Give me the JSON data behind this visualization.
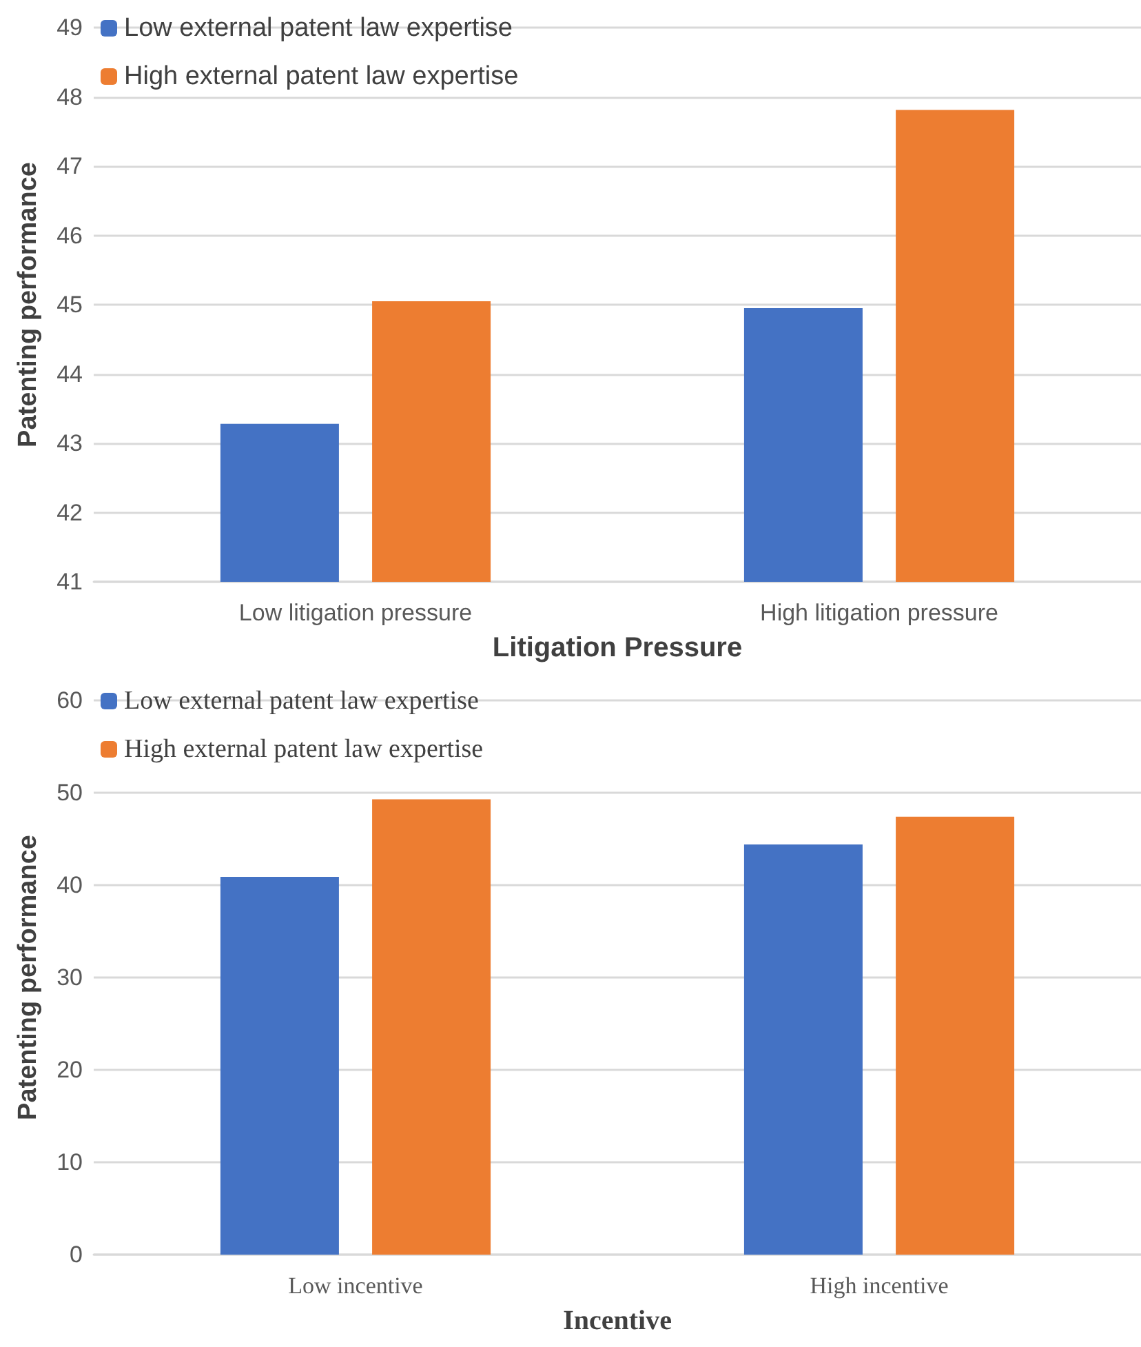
{
  "chart_data": [
    {
      "type": "bar",
      "xlabel": "Litigation Pressure",
      "ylabel": "Patenting performance",
      "categories": [
        "Low litigation pressure",
        "High litigation pressure"
      ],
      "series": [
        {
          "name": "Low external patent law expertise",
          "color": "#4472c4",
          "values": [
            43.28,
            44.95
          ]
        },
        {
          "name": "High external patent law expertise",
          "color": "#ed7d31",
          "values": [
            45.05,
            47.81
          ]
        }
      ],
      "ylim": [
        41,
        49
      ],
      "yticks": [
        41,
        42,
        43,
        44,
        45,
        46,
        47,
        48,
        49
      ],
      "grid": "y",
      "legend": "top left"
    },
    {
      "type": "bar",
      "xlabel": "Incentive",
      "ylabel": "Patenting performance",
      "categories": [
        "Low incentive",
        "High incentive"
      ],
      "series": [
        {
          "name": "Low external patent law expertise",
          "color": "#4472c4",
          "values": [
            40.9,
            44.4
          ]
        },
        {
          "name": "High external patent law expertise",
          "color": "#ed7d31",
          "values": [
            49.3,
            47.4
          ]
        }
      ],
      "ylim": [
        0,
        60
      ],
      "yticks": [
        0,
        10,
        20,
        30,
        40,
        50,
        60
      ],
      "grid": "y",
      "legend": "top left"
    }
  ]
}
